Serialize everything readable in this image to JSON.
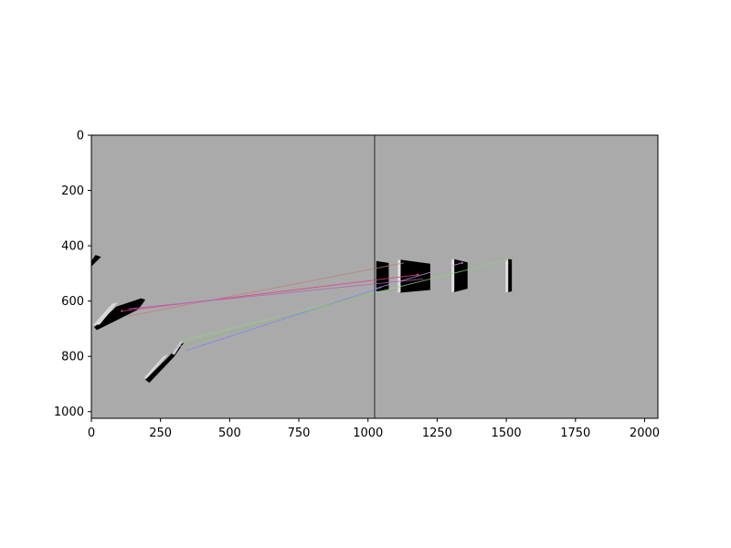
{
  "chart_data": {
    "type": "image",
    "title": "",
    "xlabel": "",
    "ylabel": "",
    "xlim": [
      0,
      2048
    ],
    "ylim": [
      1024,
      0
    ],
    "grid": false,
    "xticks": [
      0,
      250,
      500,
      750,
      1000,
      1250,
      1500,
      1750,
      2000
    ],
    "yticks": [
      0,
      200,
      400,
      600,
      800,
      1000
    ],
    "background_color": "#aaaaaa",
    "divider_x": 1024,
    "divider_color": "#555555",
    "objects": [
      {
        "name": "left-object-upper-fragment",
        "fill": "#000000",
        "points": [
          [
            0,
            455
          ],
          [
            15,
            433
          ],
          [
            35,
            440
          ],
          [
            0,
            475
          ]
        ]
      },
      {
        "name": "left-object-upper",
        "fill": "#000000",
        "points": [
          [
            10,
            695
          ],
          [
            90,
            620
          ],
          [
            180,
            590
          ],
          [
            195,
            595
          ],
          [
            170,
            630
          ],
          [
            100,
            665
          ],
          [
            20,
            705
          ]
        ]
      },
      {
        "name": "left-object-upper-highlight",
        "fill": "#d8d8d8",
        "points": [
          [
            5,
            688
          ],
          [
            75,
            610
          ],
          [
            95,
            605
          ],
          [
            30,
            685
          ]
        ]
      },
      {
        "name": "left-object-lower",
        "fill": "#000000",
        "points": [
          [
            195,
            885
          ],
          [
            280,
            800
          ],
          [
            315,
            760
          ],
          [
            335,
            750
          ],
          [
            300,
            800
          ],
          [
            210,
            895
          ]
        ]
      },
      {
        "name": "left-object-lower-highlight",
        "fill": "#d8d8d8",
        "points": [
          [
            190,
            878
          ],
          [
            260,
            800
          ],
          [
            278,
            792
          ],
          [
            200,
            880
          ]
        ]
      },
      {
        "name": "left-object-lower-highlight-2",
        "fill": "#c8c8c8",
        "points": [
          [
            290,
            790
          ],
          [
            320,
            748
          ],
          [
            332,
            745
          ],
          [
            300,
            795
          ]
        ]
      },
      {
        "name": "right-object-1",
        "fill": "#000000",
        "points": [
          [
            1030,
            455
          ],
          [
            1075,
            462
          ],
          [
            1075,
            560
          ],
          [
            1030,
            565
          ]
        ]
      },
      {
        "name": "right-object-2",
        "fill": "#000000",
        "points": [
          [
            1115,
            450
          ],
          [
            1225,
            465
          ],
          [
            1225,
            560
          ],
          [
            1115,
            570
          ]
        ]
      },
      {
        "name": "right-object-2-highlight",
        "fill": "#e0e0e0",
        "points": [
          [
            1108,
            452
          ],
          [
            1118,
            450
          ],
          [
            1118,
            568
          ],
          [
            1108,
            570
          ]
        ]
      },
      {
        "name": "right-object-3",
        "fill": "#000000",
        "points": [
          [
            1310,
            448
          ],
          [
            1360,
            460
          ],
          [
            1360,
            555
          ],
          [
            1310,
            568
          ]
        ]
      },
      {
        "name": "right-object-3-highlight",
        "fill": "#e0e0e0",
        "points": [
          [
            1302,
            450
          ],
          [
            1312,
            448
          ],
          [
            1312,
            566
          ],
          [
            1302,
            568
          ]
        ]
      },
      {
        "name": "right-object-4",
        "fill": "#000000",
        "points": [
          [
            1505,
            447
          ],
          [
            1520,
            450
          ],
          [
            1520,
            565
          ],
          [
            1505,
            568
          ]
        ]
      },
      {
        "name": "right-object-4-highlight",
        "fill": "#e0e0e0",
        "points": [
          [
            1497,
            449
          ],
          [
            1507,
            447
          ],
          [
            1507,
            567
          ],
          [
            1497,
            569
          ]
        ]
      }
    ],
    "matches": [
      {
        "color": "#e04080",
        "from": [
          110,
          636
        ],
        "to": [
          1180,
          505
        ]
      },
      {
        "color": "#c08080",
        "from": [
          130,
          655
        ],
        "to": [
          1130,
          462
        ]
      },
      {
        "color": "#b060c0",
        "from": [
          135,
          628
        ],
        "to": [
          1200,
          520
        ]
      },
      {
        "color": "#90d080",
        "from": [
          320,
          745
        ],
        "to": [
          1500,
          452
        ]
      },
      {
        "color": "#c0a0d0",
        "from": [
          300,
          770
        ],
        "to": [
          1340,
          462
        ]
      },
      {
        "color": "#8080ff",
        "from": [
          340,
          780
        ],
        "to": [
          1050,
          550
        ]
      },
      {
        "color": "#80c060",
        "from": [
          330,
          760
        ],
        "to": [
          1030,
          565
        ]
      }
    ],
    "points": [
      {
        "color": "#e04080",
        "x": 110,
        "y": 636
      },
      {
        "color": "#e04080",
        "x": 1180,
        "y": 505
      },
      {
        "color": "#b060c0",
        "x": 1340,
        "y": 462
      },
      {
        "color": "#90d080",
        "x": 1500,
        "y": 452
      }
    ]
  }
}
